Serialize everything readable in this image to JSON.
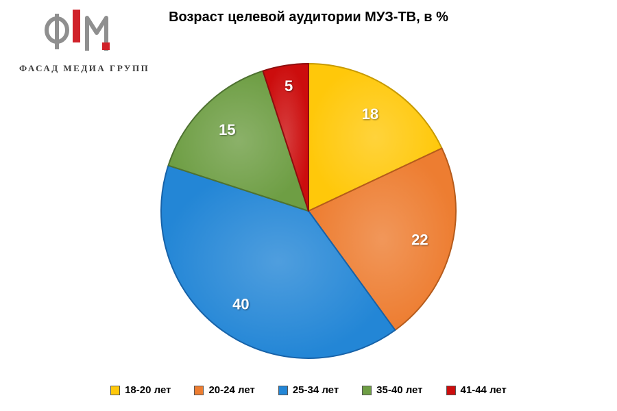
{
  "logo": {
    "text": "ФАСАД МЕДИА ГРУПП",
    "mark_red": "#d0222a",
    "mark_gray": "#8f8f8f"
  },
  "chart_data": {
    "type": "pie",
    "title": "Возраст целевой аудитории МУЗ-ТВ, в %",
    "categories": [
      "18-20 лет",
      "20-24 лет",
      "25-34 лет",
      "35-40 лет",
      "41-44 лет"
    ],
    "values": [
      18,
      22,
      40,
      15,
      5
    ],
    "colors": [
      "#ffc80a",
      "#ed7d31",
      "#2386d6",
      "#6e9e44",
      "#cc0d0d"
    ],
    "stroke_colors": [
      "#c79a00",
      "#b55b1c",
      "#1762a8",
      "#4e7231",
      "#8e0e0e"
    ],
    "label_color": "#ffffff",
    "start_angle_deg": 0,
    "direction": "clockwise",
    "legend_position": "bottom"
  }
}
